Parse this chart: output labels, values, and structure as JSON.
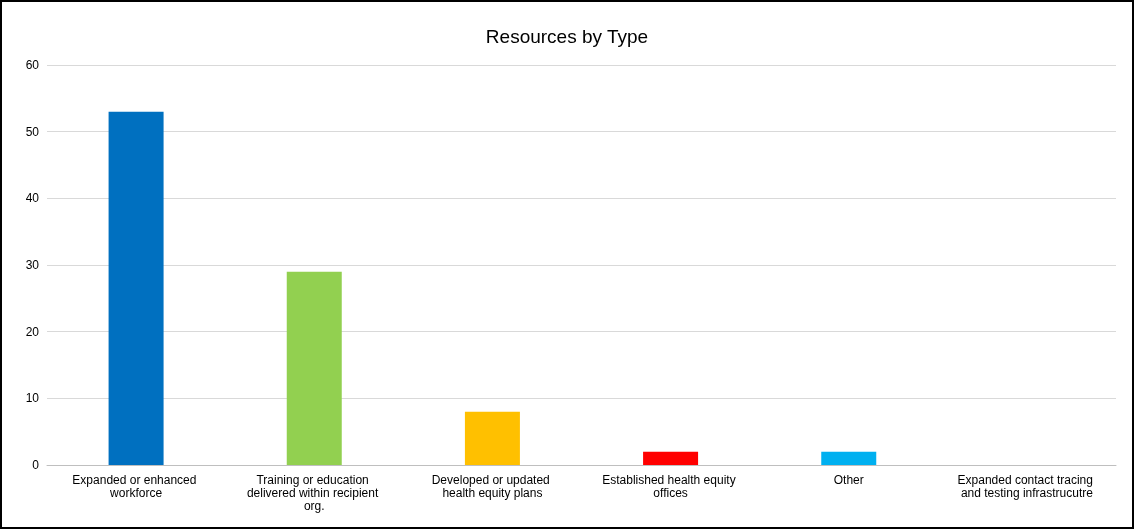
{
  "chart_data": {
    "type": "bar",
    "title": "Resources by Type",
    "categories": [
      "Expanded or enhanced workforce",
      "Training or education delivered within recipient org.",
      "Developed or updated health equity plans",
      "Established health equity offices",
      "Other",
      "Expanded contact tracing and testing infrastrucutre"
    ],
    "values": [
      53,
      29,
      8,
      2,
      2,
      0
    ],
    "colors": [
      "#0070c0",
      "#92d050",
      "#ffc000",
      "#ff0000",
      "#00b0f0",
      "#7f7f7f"
    ],
    "ylim": [
      0,
      60
    ],
    "yticks": [
      0,
      10,
      20,
      30,
      40,
      50,
      60
    ],
    "grid": "y"
  }
}
